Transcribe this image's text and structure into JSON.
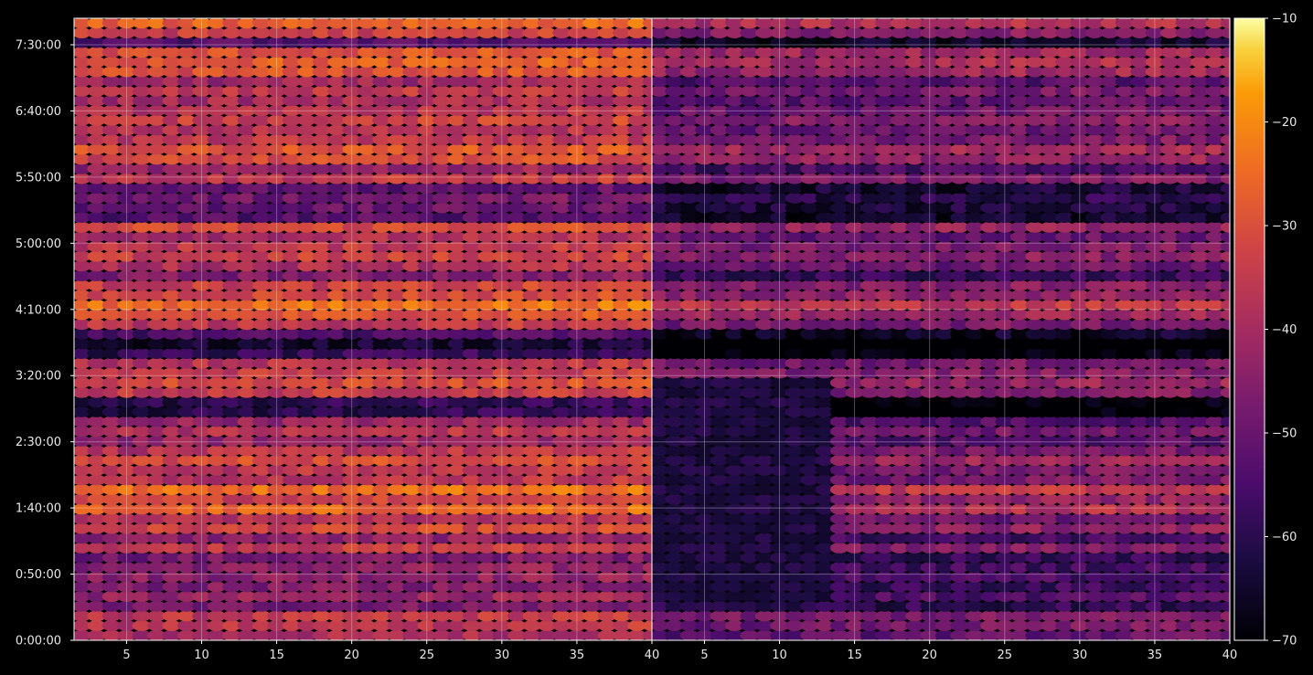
{
  "chart_data": [
    {
      "type": "heatmap",
      "title": "",
      "xlabel": "",
      "ylabel": "",
      "xlim": [
        1.5,
        40
      ],
      "ylim": [
        0,
        28200
      ],
      "x_ticks": [
        5,
        10,
        15,
        20,
        25,
        30,
        35,
        40
      ],
      "x_tick_labels": [
        "5",
        "10",
        "15",
        "20",
        "25",
        "30",
        "35",
        "40"
      ],
      "y_ticks": [
        0,
        3000,
        6000,
        9000,
        12000,
        15000,
        18000,
        21000,
        24000,
        27000
      ],
      "y_tick_labels": [
        "0:00:00",
        "0:50:00",
        "1:40:00",
        "2:30:00",
        "3:20:00",
        "4:10:00",
        "5:00:00",
        "5:50:00",
        "6:40:00",
        "7:30:00"
      ],
      "grid": true,
      "rows": 64,
      "columns": 40,
      "colormap": "inferno",
      "value_range": [
        -70,
        -10
      ],
      "band_profile": [
        {
          "y": 0,
          "level": -45
        },
        {
          "y": 900,
          "level": -38
        },
        {
          "y": 2500,
          "level": -52
        },
        {
          "y": 4500,
          "level": -40
        },
        {
          "y": 7000,
          "level": -30
        },
        {
          "y": 8500,
          "level": -42
        },
        {
          "y": 10500,
          "level": -45
        },
        {
          "y": 12000,
          "level": -33
        },
        {
          "y": 13500,
          "level": -42
        },
        {
          "y": 14900,
          "level": -28
        },
        {
          "y": 16500,
          "level": -40
        },
        {
          "y": 18500,
          "level": -35
        },
        {
          "y": 19800,
          "level": -58
        },
        {
          "y": 21500,
          "level": -38
        },
        {
          "y": 22500,
          "level": -30
        },
        {
          "y": 24300,
          "level": -37
        },
        {
          "y": 26500,
          "level": -33
        },
        {
          "y": 28000,
          "level": -30
        }
      ]
    },
    {
      "type": "heatmap",
      "title": "",
      "xlabel": "",
      "ylabel": "",
      "xlim": [
        1.5,
        40
      ],
      "ylim": [
        0,
        28200
      ],
      "x_ticks": [
        5,
        10,
        15,
        20,
        25,
        30,
        35,
        40
      ],
      "x_tick_labels": [
        "5",
        "10",
        "15",
        "20",
        "25",
        "30",
        "35",
        "40"
      ],
      "grid": true,
      "rows": 64,
      "columns": 40,
      "colormap": "inferno",
      "value_range": [
        -70,
        -10
      ],
      "offset_from_left_panel": -12,
      "dark_region": {
        "x": [
          2,
          13
        ],
        "y": [
          1800,
          12000
        ],
        "level": -62
      }
    }
  ],
  "colorbar": {
    "ticks": [
      -10,
      -20,
      -30,
      -40,
      -50,
      -60,
      -70
    ],
    "tick_labels": [
      "−10",
      "−20",
      "−30",
      "−40",
      "−50",
      "−60",
      "−70"
    ],
    "range": [
      -70,
      -10
    ],
    "colormap": "inferno"
  },
  "colors": {
    "background": "#000000",
    "axis": "#ffffff",
    "text": "#e8e8e8",
    "gridline": "#ffffff"
  }
}
